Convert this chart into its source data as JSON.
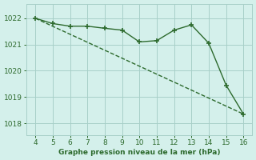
{
  "line1_x": [
    4,
    5,
    6,
    7,
    8,
    9,
    10,
    11,
    12,
    13,
    14,
    15,
    16
  ],
  "line1_y": [
    1022.0,
    1021.8,
    1021.7,
    1021.7,
    1021.62,
    1021.55,
    1021.1,
    1021.15,
    1021.55,
    1021.75,
    1021.05,
    1019.45,
    1018.35
  ],
  "line2_x": [
    4,
    16
  ],
  "line2_y": [
    1022.0,
    1018.35
  ],
  "line_color": "#2d6a2d",
  "bg_color": "#d4f0eb",
  "grid_color": "#a8cfc8",
  "xlabel": "Graphe pression niveau de la mer (hPa)",
  "tick_color": "#2d6a2d",
  "xlim": [
    3.5,
    16.5
  ],
  "ylim": [
    1017.55,
    1022.55
  ],
  "xticks": [
    4,
    5,
    6,
    7,
    8,
    9,
    10,
    11,
    12,
    13,
    14,
    15,
    16
  ],
  "yticks": [
    1018,
    1019,
    1020,
    1021,
    1022
  ],
  "marker": "+",
  "markersize": 4,
  "linewidth": 1.0
}
